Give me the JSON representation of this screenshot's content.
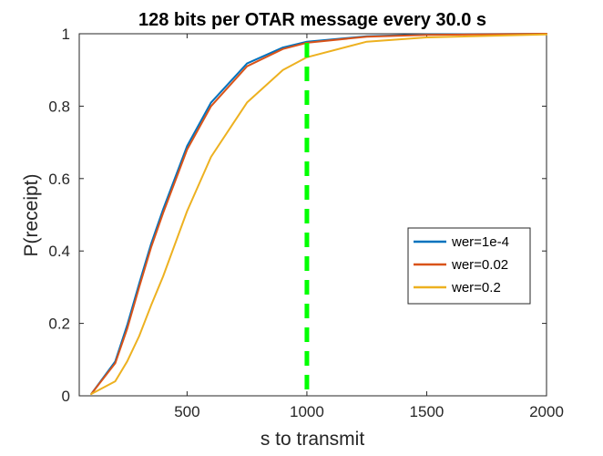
{
  "chart_data": {
    "type": "line",
    "title": "128 bits per OTAR message every 30.0 s",
    "xlabel": "s to transmit",
    "ylabel": "P(receipt)",
    "xlim": [
      50,
      2000
    ],
    "ylim": [
      0,
      1
    ],
    "x_ticks": [
      500,
      1000,
      1500,
      2000
    ],
    "x_tick_labels": [
      "500",
      "1000",
      "1500",
      "2000"
    ],
    "y_ticks": [
      0,
      0.2,
      0.4,
      0.6,
      0.8,
      1
    ],
    "y_tick_labels": [
      "0",
      "0.2",
      "0.4",
      "0.6",
      "0.8",
      "1"
    ],
    "grid": false,
    "legend_position": "middle-right",
    "series": [
      {
        "name": "wer=1e-4",
        "color": "#0072BD",
        "x": [
          100,
          200,
          250,
          300,
          350,
          400,
          500,
          600,
          750,
          900,
          1000,
          1250,
          1500,
          2000
        ],
        "y": [
          0.005,
          0.095,
          0.195,
          0.31,
          0.42,
          0.515,
          0.69,
          0.81,
          0.918,
          0.962,
          0.978,
          0.993,
          0.998,
          1.0
        ]
      },
      {
        "name": "wer=0.02",
        "color": "#D95319",
        "x": [
          100,
          200,
          250,
          300,
          350,
          400,
          500,
          600,
          750,
          900,
          1000,
          1250,
          1500,
          2000
        ],
        "y": [
          0.005,
          0.09,
          0.185,
          0.3,
          0.41,
          0.505,
          0.68,
          0.8,
          0.91,
          0.958,
          0.975,
          0.992,
          0.997,
          1.0
        ]
      },
      {
        "name": "wer=0.2",
        "color": "#EDB120",
        "x": [
          100,
          200,
          250,
          300,
          350,
          400,
          500,
          600,
          750,
          900,
          1000,
          1250,
          1500,
          2000
        ],
        "y": [
          0.005,
          0.04,
          0.095,
          0.165,
          0.25,
          0.33,
          0.51,
          0.66,
          0.81,
          0.9,
          0.935,
          0.978,
          0.99,
          0.998
        ]
      }
    ],
    "reference_line": {
      "x": 1000,
      "color": "#00FF00",
      "style": "dashed"
    }
  }
}
